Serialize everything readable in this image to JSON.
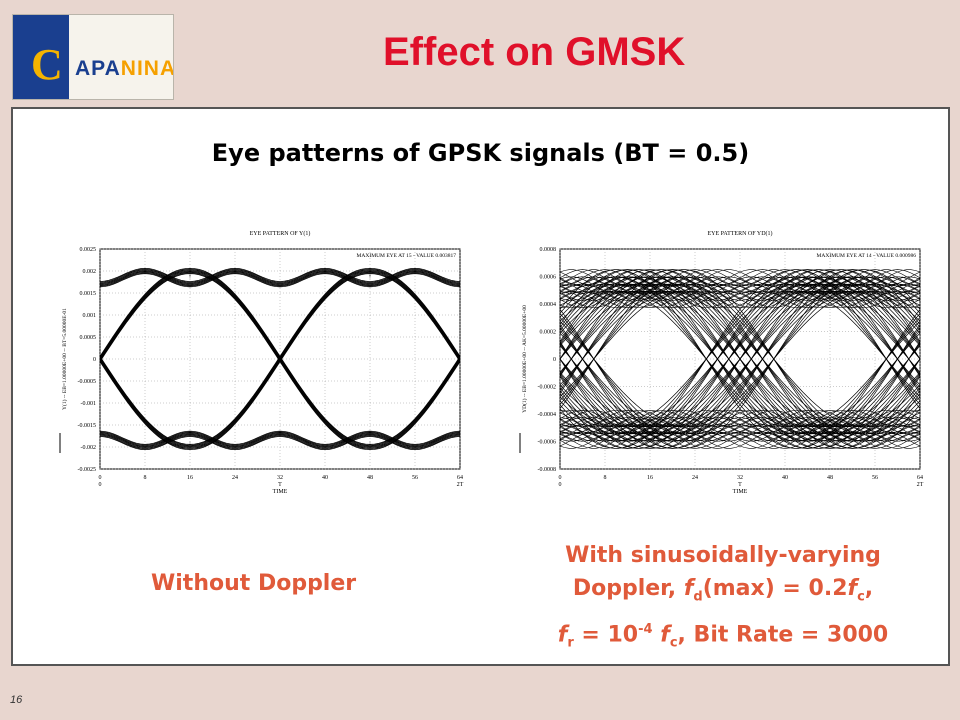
{
  "slide": {
    "title": "Effect on GMSK",
    "subtitle": "Eye patterns of GPSK signals (BT = 0.5)",
    "page_number": "16",
    "logo": {
      "text_initial": "C",
      "text_rest_a": "APA",
      "text_rest_b": "NINA"
    },
    "caption_left": "Without Doppler",
    "caption_right": {
      "line1": "With sinusoidally-varying",
      "line2_pre": "Doppler, ",
      "fd": "f",
      "fd_sub": "d",
      "line2_mid": "(max) = 0.2",
      "fc1": "f",
      "fc1_sub": "c",
      "line2_post": ",",
      "fr": "f",
      "fr_sub": "r",
      "line3_mid": " = 10",
      "exp": "-4",
      "fc2": "f",
      "fc2_sub": "c",
      "line3_post": ", Bit Rate = 3000"
    },
    "colors": {
      "title": "#e0102a",
      "caption": "#e05a3a",
      "background": "#e8d6cf",
      "logo_blue": "#1a3f8f",
      "logo_gold": "#f5b400"
    }
  },
  "chart_data": [
    {
      "type": "line",
      "title": "EYE PATTERN OF Y(1)",
      "annotation": "MAXIMUM EYE AT 15 - VALUE 0.003817",
      "ylabel": "Y(1) -- EB=1.00000E+00 -- BT=5.00000E-01",
      "xlabel": "TIME",
      "x_ticks": [
        "0",
        "8",
        "16",
        "24",
        "32",
        "40",
        "48",
        "56",
        "64"
      ],
      "x_ticks_sub": [
        "0",
        "",
        "",
        "",
        "T",
        "",
        "",
        "",
        "2T"
      ],
      "xlim": [
        0,
        64
      ],
      "y_ticks": [
        "0.0025",
        "0.002",
        "0.0015",
        "0.001",
        "0.0005",
        "0",
        "-0.0005",
        "-0.001",
        "-0.0015",
        "-0.002",
        "-0.0025"
      ],
      "ylim": [
        -0.0025,
        0.0025
      ],
      "grid": true,
      "series": [
        {
          "values_desc": "peaks",
          "x": [
            0,
            8,
            16,
            24,
            32,
            40,
            48,
            56,
            64
          ],
          "y": [
            0.0014,
            0.0019,
            0.002,
            0.0019,
            0.0014,
            0.0019,
            0.002,
            0.0019,
            0.0014
          ]
        },
        {
          "values_desc": "troughs",
          "x": [
            0,
            8,
            16,
            24,
            32,
            40,
            48,
            56,
            64
          ],
          "y": [
            -0.0014,
            -0.0019,
            -0.002,
            -0.0019,
            -0.0014,
            -0.0019,
            -0.002,
            -0.0019,
            -0.0014
          ]
        },
        {
          "values_desc": "crossing",
          "x": [
            0,
            16,
            32,
            48,
            64
          ],
          "y": [
            0,
            0.002,
            0,
            -0.002,
            0
          ]
        },
        {
          "values_desc": "crossing",
          "x": [
            0,
            16,
            32,
            48,
            64
          ],
          "y": [
            0,
            -0.002,
            0,
            0.002,
            0
          ]
        }
      ]
    },
    {
      "type": "line",
      "title": "EYE PATTERN OF YD(1)",
      "annotation": "MAXIMUM EYE AT 14 - VALUE 0.000986",
      "ylabel": "YD(1) -- EB=1.00000E+00 -- AK=5.00000E+00",
      "xlabel": "TIME",
      "x_ticks": [
        "0",
        "8",
        "16",
        "24",
        "32",
        "40",
        "48",
        "56",
        "64"
      ],
      "x_ticks_sub": [
        "0",
        "",
        "",
        "",
        "T",
        "",
        "",
        "",
        "2T"
      ],
      "xlim": [
        0,
        64
      ],
      "y_ticks": [
        "0.0008",
        "0.0006",
        "0.0004",
        "0.0002",
        "0",
        "-0.0002",
        "-0.0004",
        "-0.0006",
        "-0.0008"
      ],
      "ylim": [
        -0.0008,
        0.0008
      ],
      "grid": true,
      "series": []
    }
  ]
}
